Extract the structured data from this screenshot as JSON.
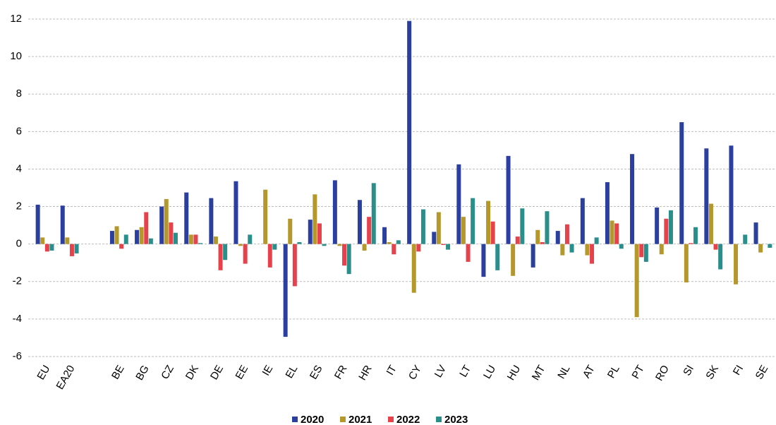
{
  "chart_data": {
    "type": "bar",
    "categories": [
      "EU",
      "EA20",
      null,
      "BE",
      "BG",
      "CZ",
      "DK",
      "DE",
      "EE",
      "IE",
      "EL",
      "ES",
      "FR",
      "HR",
      "IT",
      "CY",
      "LV",
      "LT",
      "LU",
      "HU",
      "MT",
      "NL",
      "AT",
      "PL",
      "PT",
      "RO",
      "SI",
      "SK",
      "FI",
      "SE"
    ],
    "series": [
      {
        "name": "2020",
        "color": "#2b3f9e",
        "values": [
          2.1,
          2.05,
          null,
          0.7,
          0.75,
          2.0,
          2.75,
          2.45,
          3.35,
          null,
          -4.95,
          1.3,
          3.4,
          2.35,
          0.9,
          11.9,
          0.65,
          4.25,
          -1.75,
          4.7,
          -1.25,
          0.7,
          2.45,
          3.3,
          4.8,
          1.95,
          6.5,
          5.1,
          5.25,
          1.15
        ]
      },
      {
        "name": "2021",
        "color": "#b4982c",
        "values": [
          0.35,
          0.35,
          null,
          0.95,
          0.9,
          2.4,
          0.5,
          0.4,
          -0.1,
          2.9,
          1.35,
          2.65,
          -0.1,
          -0.35,
          0.1,
          -2.6,
          1.7,
          1.45,
          2.3,
          -1.7,
          0.75,
          -0.6,
          -0.6,
          1.25,
          -3.9,
          -0.55,
          -2.05,
          2.15,
          -2.15,
          -0.45
        ]
      },
      {
        "name": "2022",
        "color": "#e5424b",
        "values": [
          -0.4,
          -0.65,
          null,
          -0.25,
          1.7,
          1.15,
          0.5,
          -1.4,
          -1.05,
          -1.25,
          -2.25,
          1.1,
          -1.15,
          1.45,
          -0.55,
          -0.4,
          -0.05,
          -0.95,
          1.2,
          0.4,
          0.1,
          1.05,
          -1.05,
          1.1,
          -0.7,
          1.35,
          0.05,
          -0.3,
          null,
          null
        ]
      },
      {
        "name": "2023",
        "color": "#2a8e8a",
        "values": [
          -0.35,
          -0.5,
          null,
          0.5,
          0.3,
          0.6,
          0.05,
          -0.85,
          0.5,
          -0.3,
          0.1,
          -0.1,
          -1.6,
          3.25,
          0.2,
          1.85,
          -0.3,
          2.45,
          -1.4,
          1.9,
          1.75,
          -0.45,
          0.35,
          -0.25,
          -0.95,
          1.8,
          0.9,
          -1.35,
          0.5,
          -0.2
        ]
      }
    ],
    "ylim": [
      -6,
      12
    ],
    "yticks": [
      -6,
      -4,
      -2,
      0,
      2,
      4,
      6,
      8,
      10,
      12
    ],
    "grid": true
  }
}
